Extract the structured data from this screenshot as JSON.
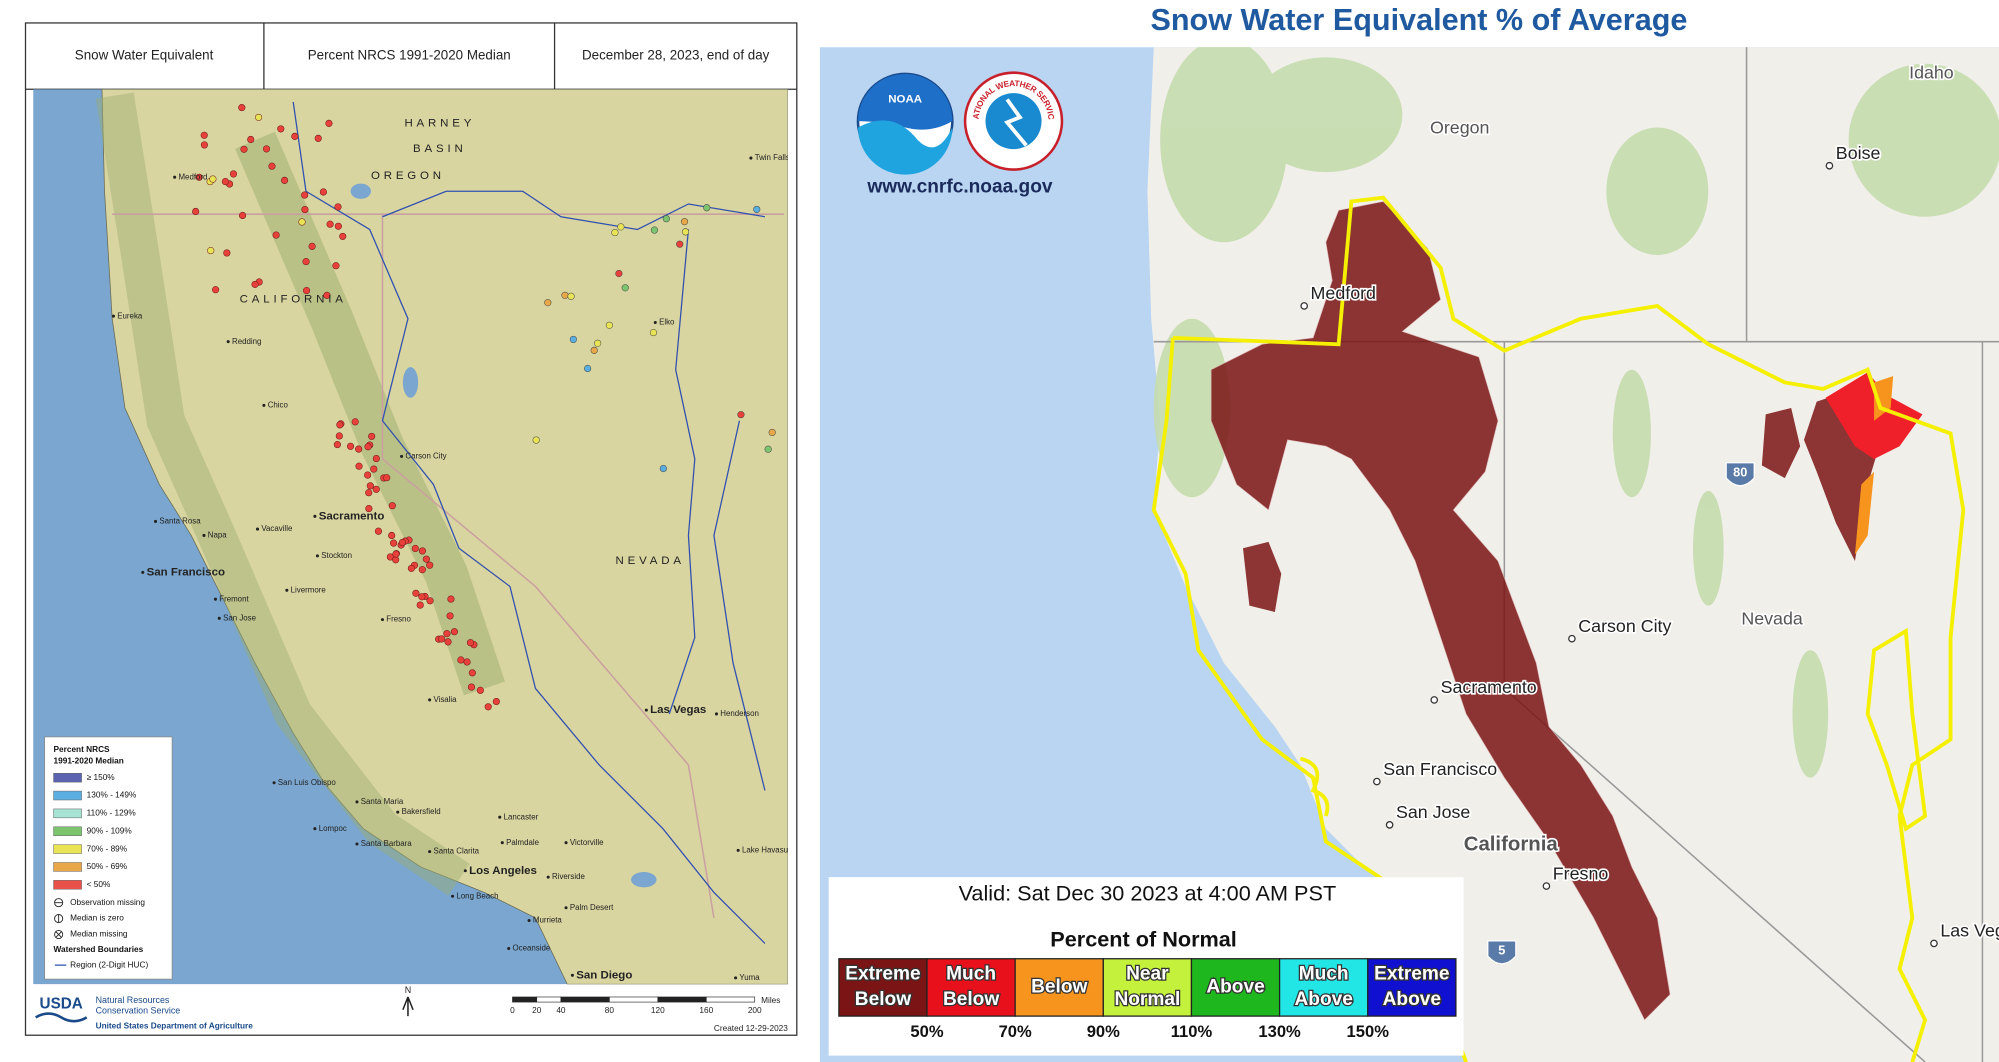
{
  "left_panel": {
    "header": [
      "Snow Water Equivalent",
      "Percent NRCS 1991-2020 Median",
      "December 28, 2023, end of day"
    ],
    "map_labels": [
      "HARNEY",
      "BASIN",
      "OREGON",
      "CALIFORNIA",
      "NEVADA",
      "Medford",
      "Eureka",
      "Redding",
      "Chico",
      "Carson City",
      "Sacramento",
      "Santa Rosa",
      "Napa",
      "Vacaville",
      "Stockton",
      "San Francisco",
      "Livermore",
      "Fremont",
      "San Jose",
      "Fresno",
      "Visalia",
      "Bakersfield",
      "San Luis Obispo",
      "Santa Maria",
      "Lompoc",
      "Santa Barbara",
      "Santa Clarita",
      "Lancaster",
      "Palmdale",
      "Victorville",
      "Los Angeles",
      "Riverside",
      "Long Beach",
      "Palm Desert",
      "Murrieta",
      "Oceanside",
      "San Diego",
      "Yuma",
      "Las Vegas",
      "Henderson",
      "Elko",
      "Twin Falls",
      "Lake Havasu"
    ],
    "legend": {
      "title": [
        "Percent NRCS",
        "1991-2020 Median"
      ],
      "classes": [
        {
          "label": "≥ 150%",
          "color": "#5b62b0"
        },
        {
          "label": "130% - 149%",
          "color": "#5aaee0"
        },
        {
          "label": "110% - 129%",
          "color": "#a6e3d2"
        },
        {
          "label": "90% - 109%",
          "color": "#7cc46e"
        },
        {
          "label": "70% - 89%",
          "color": "#e8e455"
        },
        {
          "label": "50% - 69%",
          "color": "#e8a84a"
        },
        {
          "label": "< 50%",
          "color": "#e8504a"
        }
      ],
      "symbols": [
        "Observation missing",
        "Median is zero",
        "Median missing"
      ],
      "boundaries_title": "Watershed Boundaries",
      "boundary_label": "Region (2-Digit HUC)"
    },
    "footer": {
      "agency": "USDA",
      "org": [
        "Natural Resources",
        "Conservation Service"
      ],
      "department": "United States Department of Agriculture",
      "north": "N",
      "scale_unit": "Miles",
      "scale_ticks": [
        0,
        20,
        40,
        80,
        120,
        160,
        200
      ],
      "created": "Created 12-29-2023"
    }
  },
  "right_panel": {
    "title": "Snow Water Equivalent % of Average",
    "url": "www.cnrfc.noaa.gov",
    "logos": [
      "NOAA",
      "NATIONAL WEATHER SERVICE"
    ],
    "map_labels": [
      "Idaho",
      "Oregon",
      "Boise",
      "Medford",
      "Nevada",
      "Carson City",
      "Sacramento",
      "San Francisco",
      "San Jose",
      "California",
      "Fresno",
      "Las Vegas"
    ],
    "road_shields": [
      "80",
      "5"
    ],
    "legend": {
      "valid": "Valid: Sat Dec 30 2023 at 4:00 AM PST",
      "title": "Percent of Normal",
      "classes": [
        {
          "label": [
            "Extreme",
            "Below"
          ],
          "color": "#7b1414"
        },
        {
          "label": [
            "Much",
            "Below"
          ],
          "color": "#e8101a"
        },
        {
          "label": [
            "Below"
          ],
          "color": "#f7941d"
        },
        {
          "label": [
            "Near",
            "Normal"
          ],
          "color": "#c4f23c"
        },
        {
          "label": [
            "Above"
          ],
          "color": "#1eb81e"
        },
        {
          "label": [
            "Much",
            "Above"
          ],
          "color": "#22e5e5"
        },
        {
          "label": [
            "Extreme",
            "Above"
          ],
          "color": "#1010d0"
        }
      ],
      "thresholds": [
        "50%",
        "70%",
        "90%",
        "110%",
        "130%",
        "150%"
      ]
    }
  }
}
